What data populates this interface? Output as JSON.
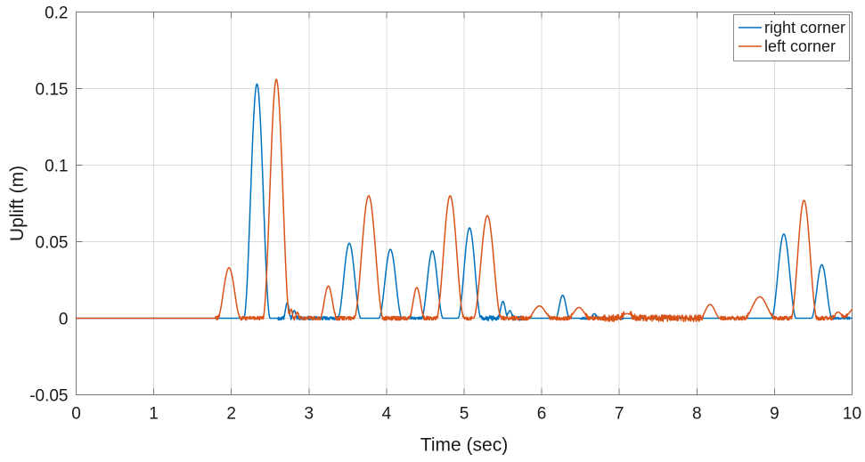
{
  "chart_data": {
    "type": "line",
    "title": "",
    "xlabel": "Time (sec)",
    "ylabel": "Uplift (m)",
    "xlim": [
      0,
      10
    ],
    "ylim": [
      -0.05,
      0.2
    ],
    "xticks": [
      0,
      1,
      2,
      3,
      4,
      5,
      6,
      7,
      8,
      9,
      10
    ],
    "xtick_labels": [
      "0",
      "1",
      "2",
      "3",
      "4",
      "5",
      "6",
      "7",
      "8",
      "9",
      "10"
    ],
    "yticks": [
      -0.05,
      0,
      0.05,
      0.1,
      0.15,
      0.2
    ],
    "ytick_labels": [
      "-0.05",
      "0",
      "0.05",
      "0.1",
      "0.15",
      "0.2"
    ],
    "grid": true,
    "legend_position": "top-right",
    "legend": [
      "right corner",
      "left corner"
    ],
    "colors": {
      "right_corner": "#0072BD",
      "left_corner": "#D95319"
    },
    "series": [
      {
        "name": "right corner",
        "color": "#0072BD",
        "peaks": [
          {
            "t": 2.33,
            "h": 0.153,
            "w": 0.34
          },
          {
            "t": 2.72,
            "h": 0.01,
            "w": 0.1
          },
          {
            "t": 2.81,
            "h": 0.005,
            "w": 0.09
          },
          {
            "t": 3.52,
            "h": 0.049,
            "w": 0.3
          },
          {
            "t": 4.05,
            "h": 0.045,
            "w": 0.3
          },
          {
            "t": 4.59,
            "h": 0.044,
            "w": 0.28
          },
          {
            "t": 5.07,
            "h": 0.059,
            "w": 0.3
          },
          {
            "t": 5.5,
            "h": 0.011,
            "w": 0.13
          },
          {
            "t": 5.59,
            "h": 0.005,
            "w": 0.1
          },
          {
            "t": 6.27,
            "h": 0.015,
            "w": 0.18
          },
          {
            "t": 6.68,
            "h": 0.003,
            "w": 0.1
          },
          {
            "t": 9.12,
            "h": 0.055,
            "w": 0.32
          },
          {
            "t": 9.61,
            "h": 0.035,
            "w": 0.27
          }
        ],
        "noise": [
          [
            2.6,
            3.42,
            0.0012
          ],
          [
            4.28,
            4.46,
            0.0008
          ],
          [
            5.1,
            5.75,
            0.0015
          ],
          [
            6.5,
            7.05,
            0.0007
          ],
          [
            9.73,
            9.97,
            0.0007
          ]
        ]
      },
      {
        "name": "left corner",
        "color": "#D95319",
        "peaks": [
          {
            "t": 1.97,
            "h": 0.033,
            "w": 0.3
          },
          {
            "t": 2.58,
            "h": 0.156,
            "w": 0.35
          },
          {
            "t": 2.77,
            "h": 0.006,
            "w": 0.07
          },
          {
            "t": 2.85,
            "h": 0.004,
            "w": 0.07
          },
          {
            "t": 3.25,
            "h": 0.021,
            "w": 0.22
          },
          {
            "t": 3.77,
            "h": 0.08,
            "w": 0.38
          },
          {
            "t": 4.39,
            "h": 0.02,
            "w": 0.2
          },
          {
            "t": 4.82,
            "h": 0.08,
            "w": 0.36
          },
          {
            "t": 5.3,
            "h": 0.067,
            "w": 0.36
          },
          {
            "t": 5.97,
            "h": 0.008,
            "w": 0.32
          },
          {
            "t": 6.48,
            "h": 0.007,
            "w": 0.28
          },
          {
            "t": 7.1,
            "h": 0.003,
            "w": 0.28
          },
          {
            "t": 8.17,
            "h": 0.009,
            "w": 0.26
          },
          {
            "t": 8.81,
            "h": 0.014,
            "w": 0.4
          },
          {
            "t": 9.38,
            "h": 0.077,
            "w": 0.34
          },
          {
            "t": 9.82,
            "h": 0.004,
            "w": 0.18
          },
          {
            "t": 10.05,
            "h": 0.007,
            "w": 0.35
          }
        ],
        "noise": [
          [
            1.8,
            5.1,
            0.0013
          ],
          [
            5.4,
            6.8,
            0.0013
          ],
          [
            6.8,
            8.08,
            0.0022
          ],
          [
            8.3,
            10.0,
            0.0013
          ]
        ]
      }
    ],
    "style": {
      "grid_color": "#dcdcdc",
      "axes_color": "#7a7a7a",
      "text_color": "#1a1a1a",
      "legend_border": "#8c8c8c",
      "background": "#ffffff"
    }
  }
}
